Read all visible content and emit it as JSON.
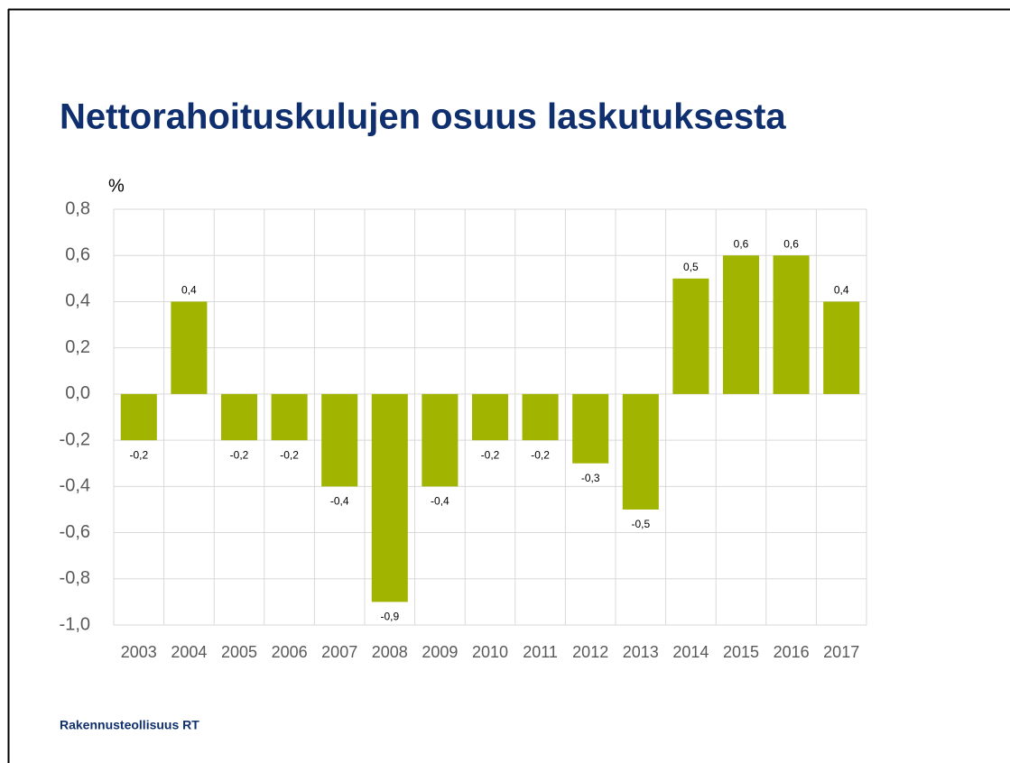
{
  "chart_data": {
    "type": "bar",
    "title": "Nettorahoituskulujen osuus laskutuksesta",
    "y_label": "%",
    "footer": "Rakennusteollisuus RT",
    "categories": [
      "2003",
      "2004",
      "2005",
      "2006",
      "2007",
      "2008",
      "2009",
      "2010",
      "2011",
      "2012",
      "2013",
      "2014",
      "2015",
      "2016",
      "2017"
    ],
    "values": [
      -0.2,
      0.4,
      -0.2,
      -0.2,
      -0.4,
      -0.9,
      -0.4,
      -0.2,
      -0.2,
      -0.3,
      -0.5,
      0.5,
      0.6,
      0.6,
      0.4
    ],
    "value_labels": [
      "-0,2",
      "0,4",
      "-0,2",
      "-0,2",
      "-0,4",
      "-0,9",
      "-0,4",
      "-0,2",
      "-0,2",
      "-0,3",
      "-0,5",
      "0,5",
      "0,6",
      "0,6",
      "0,4"
    ],
    "color": "#a0b400",
    "ylim": [
      -1.0,
      0.8
    ],
    "yticks": [
      {
        "value": -1.0,
        "label": "-1,0"
      },
      {
        "value": -0.8,
        "label": "-0,8"
      },
      {
        "value": -0.6,
        "label": "-0,6"
      },
      {
        "value": -0.4,
        "label": "-0,4"
      },
      {
        "value": -0.2,
        "label": "-0,2"
      },
      {
        "value": 0.0,
        "label": "0,0"
      },
      {
        "value": 0.2,
        "label": "0,2"
      },
      {
        "value": 0.4,
        "label": "0,4"
      },
      {
        "value": 0.6,
        "label": "0,6"
      },
      {
        "value": 0.8,
        "label": "0,8"
      }
    ],
    "grid": true
  }
}
